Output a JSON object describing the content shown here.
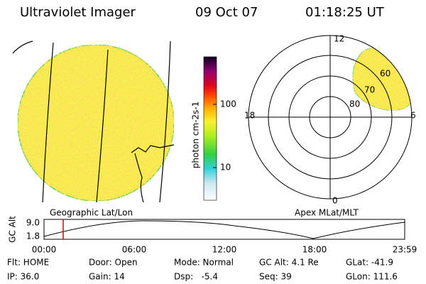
{
  "header": {
    "title": "Ultraviolet Imager",
    "date": "09 Oct 07",
    "time": "01:18:25 UT"
  },
  "colorbar": {
    "label": "photon cm-2s-1",
    "ticks": [
      "100",
      "10"
    ]
  },
  "polar": {
    "hours": [
      "12",
      "18",
      "6",
      "0"
    ],
    "latitudes": [
      "80",
      "70",
      "60"
    ]
  },
  "panel_labels": {
    "left": "Geographic Lat/Lon",
    "right": "Apex MLat/MLT"
  },
  "timeline": {
    "ylabel": "GC Alt",
    "yticks": [
      "9.0",
      "1.8"
    ],
    "xticks": [
      "00:00",
      "06:00",
      "12:00",
      "18:00",
      "23:59"
    ]
  },
  "status": {
    "rows": [
      [
        "Flt: HOME",
        "Door: Open",
        "Mode: Normal",
        "GC Alt: 4.1 Re",
        "GLat: -41.9"
      ],
      [
        "IP: 36.0",
        "Gain: 14",
        "Dsp:   -5.4",
        "Seq: 39",
        "GLon: 111.6"
      ]
    ]
  }
}
